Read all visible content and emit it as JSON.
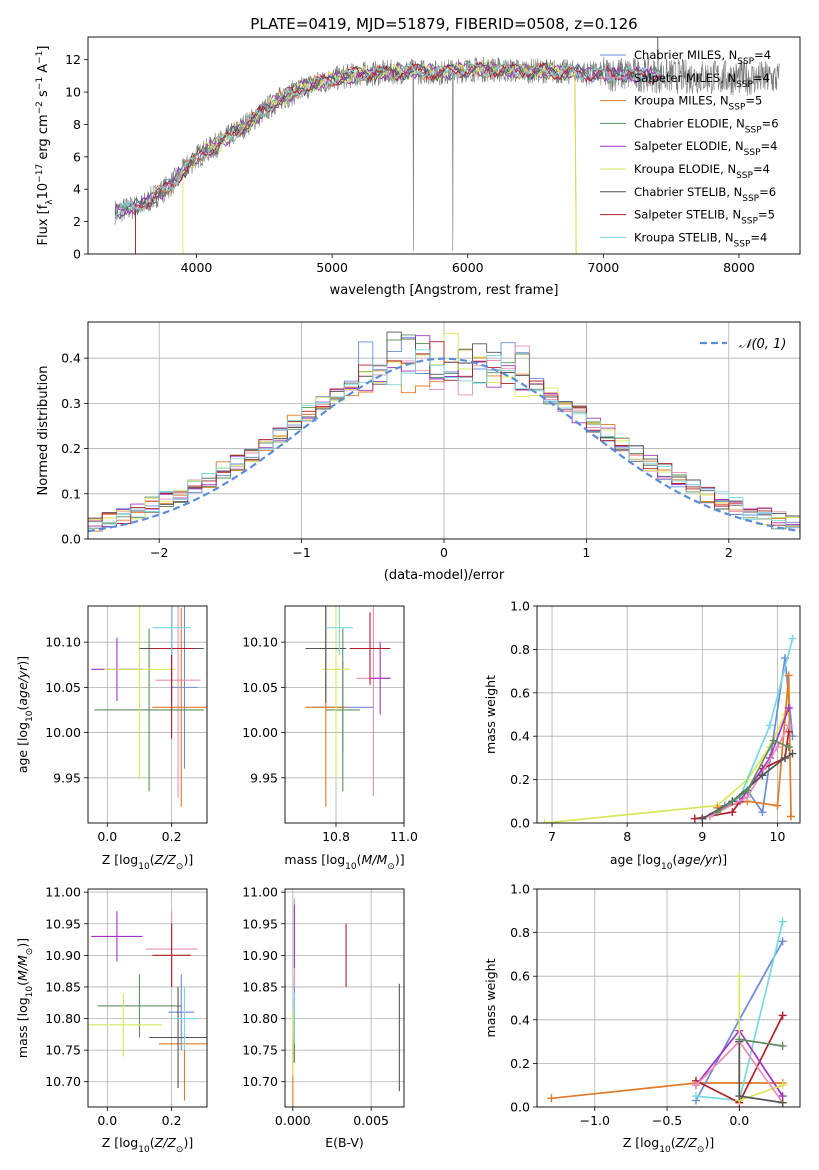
{
  "colors": {
    "chabrier_miles": "#6a8cd8",
    "salpeter_miles": "#e88fb8",
    "kroupa_miles": "#e07b2b",
    "chabrier_elodie": "#5f8f5f",
    "salpeter_elodie": "#a434c6",
    "kroupa_elodie": "#d8e85a",
    "chabrier_stelib": "#555555",
    "salpeter_stelib": "#b0202a",
    "kroupa_stelib": "#7ad8e0",
    "gaussian": "#5b8ed8"
  },
  "chart_data": [
    {
      "id": "spectrum",
      "type": "line",
      "title": "PLATE=0419, MJD=51879, FIBERID=0508, z=0.126",
      "xlabel": "wavelength [Angstrom, rest frame]",
      "ylabel": "Flux [f",
      "ylabel_sub": "λ",
      "ylabel_rest": "10",
      "ylabel_sup1": "−17",
      "ylabel_rest2": " erg cm",
      "ylabel_sup2": "−2",
      "ylabel_rest3": " s",
      "ylabel_sup3": "−1",
      "ylabel_rest4": " A",
      "ylabel_sup4": "−1",
      "ylabel_end": "]",
      "xlim": [
        3200,
        8450
      ],
      "ylim": [
        0,
        13.4
      ],
      "xticks": [
        4000,
        5000,
        6000,
        7000,
        8000
      ],
      "yticks": [
        0,
        2,
        4,
        6,
        8,
        10,
        12
      ],
      "grid": false,
      "legend": "right",
      "series": [
        {
          "name": "Chabrier MILES, N",
          "sub": "SSP",
          "eq": "=4",
          "color": "chabrier_miles"
        },
        {
          "name": "Salpeter MILES, N",
          "sub": "SSP",
          "eq": "=4",
          "color": "salpeter_miles"
        },
        {
          "name": "Kroupa MILES, N",
          "sub": "SSP",
          "eq": "=5",
          "color": "kroupa_miles"
        },
        {
          "name": "Chabrier ELODIE, N",
          "sub": "SSP",
          "eq": "=6",
          "color": "chabrier_elodie"
        },
        {
          "name": "Salpeter ELODIE, N",
          "sub": "SSP",
          "eq": "=4",
          "color": "salpeter_elodie"
        },
        {
          "name": "Kroupa ELODIE, N",
          "sub": "SSP",
          "eq": "=4",
          "color": "kroupa_elodie"
        },
        {
          "name": "Chabrier STELIB, N",
          "sub": "SSP",
          "eq": "=6",
          "color": "chabrier_stelib"
        },
        {
          "name": "Salpeter STELIB, N",
          "sub": "SSP",
          "eq": "=5",
          "color": "salpeter_stelib"
        },
        {
          "name": "Kroupa STELIB, N",
          "sub": "SSP",
          "eq": "=4",
          "color": "kroupa_stelib"
        }
      ],
      "continuum": {
        "x": [
          3400,
          3600,
          3800,
          4000,
          4200,
          4400,
          4600,
          4800,
          5000,
          5200,
          5400,
          5600,
          5800,
          6000,
          6200,
          6400,
          6600,
          6800,
          7000,
          7200,
          7400
        ],
        "y": [
          2.6,
          3.0,
          4.2,
          6.0,
          7.0,
          8.2,
          9.5,
          10.3,
          10.8,
          11.1,
          11.2,
          11.3,
          11.2,
          11.4,
          11.4,
          11.3,
          11.3,
          11.2,
          11.1,
          11.1,
          11.0
        ]
      },
      "data_x_range": [
        3400,
        8300
      ]
    },
    {
      "id": "residuals",
      "type": "line",
      "xlabel": "(data-model)/error",
      "ylabel": "Normed distribution",
      "xlim": [
        -2.5,
        2.5
      ],
      "ylim": [
        0,
        0.48
      ],
      "xticks": [
        -2,
        -1,
        0,
        1,
        2
      ],
      "yticks": [
        0.0,
        0.1,
        0.2,
        0.3,
        0.4
      ],
      "grid": true,
      "legend": "top-right",
      "legend_label": "𝒩(0, 1)",
      "bin_width": 0.1
    },
    {
      "id": "age_vs_Z",
      "type": "scatter",
      "xlabel": "Z [log",
      "xlabel_sub": "10",
      "xlabel_rest": "(Z/Z",
      "xlabel_sub2": "⊙",
      "xlabel_end": ")]",
      "ylabel": "age  [log",
      "ylabel_sub": "10",
      "ylabel_rest": "(age/yr)]",
      "xlim": [
        -0.06,
        0.31
      ],
      "ylim": [
        9.9,
        10.14
      ],
      "xticks": [
        0.0,
        0.2
      ],
      "yticks": [
        9.95,
        10.0,
        10.05,
        10.1
      ],
      "grid": true,
      "points": [
        {
          "x": 0.24,
          "y": 10.05,
          "xerr": 0.04,
          "yerr": 0.09,
          "color": "chabrier_miles"
        },
        {
          "x": 0.22,
          "y": 10.058,
          "xerr": 0.07,
          "yerr": 0.13,
          "color": "salpeter_miles"
        },
        {
          "x": 0.23,
          "y": 10.028,
          "xerr": 0.09,
          "yerr": 0.11,
          "color": "kroupa_miles"
        },
        {
          "x": 0.13,
          "y": 10.025,
          "xerr": 0.17,
          "yerr": 0.09,
          "color": "chabrier_elodie"
        },
        {
          "x": 0.03,
          "y": 10.07,
          "xerr": 0.08,
          "yerr": 0.035,
          "color": "salpeter_elodie"
        },
        {
          "x": 0.1,
          "y": 10.07,
          "xerr": 0.11,
          "yerr": 0.12,
          "color": "kroupa_elodie"
        },
        {
          "x": 0.2,
          "y": 10.093,
          "xerr": 0.1,
          "yerr": 0.06,
          "color": "chabrier_stelib"
        },
        {
          "x": 0.2,
          "y": 10.093,
          "xerr": 0.07,
          "yerr": 0.1,
          "color": "salpeter_stelib"
        },
        {
          "x": 0.2,
          "y": 10.116,
          "xerr": 0.06,
          "yerr": 0.03,
          "color": "kroupa_stelib"
        }
      ]
    },
    {
      "id": "age_vs_mass",
      "type": "scatter",
      "xlabel": "mass [log",
      "xlabel_sub": "10",
      "xlabel_rest": "(M/M",
      "xlabel_sub2": "⊙",
      "xlabel_end": ")]",
      "xlim": [
        10.65,
        11.0
      ],
      "ylim": [
        9.9,
        10.14
      ],
      "xticks": [
        10.8,
        11.0
      ],
      "yticks": [
        9.95,
        10.0,
        10.05,
        10.1
      ],
      "grid": true,
      "points": [
        {
          "x": 10.82,
          "y": 10.028,
          "xerr": 0.09,
          "yerr": 0.05,
          "color": "chabrier_miles"
        },
        {
          "x": 10.91,
          "y": 10.06,
          "xerr": 0.05,
          "yerr": 0.13,
          "color": "salpeter_miles"
        },
        {
          "x": 10.77,
          "y": 10.028,
          "xerr": 0.06,
          "yerr": 0.11,
          "color": "kroupa_miles"
        },
        {
          "x": 10.82,
          "y": 10.025,
          "xerr": 0.05,
          "yerr": 0.09,
          "color": "chabrier_elodie"
        },
        {
          "x": 10.93,
          "y": 10.06,
          "xerr": 0.03,
          "yerr": 0.04,
          "color": "salpeter_elodie"
        },
        {
          "x": 10.8,
          "y": 10.07,
          "xerr": 0.04,
          "yerr": 0.12,
          "color": "kroupa_elodie"
        },
        {
          "x": 10.77,
          "y": 10.093,
          "xerr": 0.06,
          "yerr": 0.06,
          "color": "chabrier_stelib"
        },
        {
          "x": 10.9,
          "y": 10.093,
          "xerr": 0.06,
          "yerr": 0.04,
          "color": "salpeter_stelib"
        },
        {
          "x": 10.81,
          "y": 10.116,
          "xerr": 0.04,
          "yerr": 0.03,
          "color": "kroupa_stelib"
        }
      ]
    },
    {
      "id": "weight_vs_age",
      "type": "line",
      "xlabel": "age  [log",
      "xlabel_sub": "10",
      "xlabel_rest": "(age/yr)]",
      "ylabel": "mass weight",
      "xlim": [
        6.8,
        10.3
      ],
      "ylim": [
        0,
        1.0
      ],
      "xticks": [
        7,
        8,
        9,
        10
      ],
      "yticks": [
        0.0,
        0.2,
        0.4,
        0.6,
        0.8,
        1.0
      ],
      "grid": true,
      "series": [
        {
          "color": "kroupa_elodie",
          "x": [
            6.9,
            9.2,
            9.6,
            9.9,
            10.1,
            10.15
          ],
          "y": [
            0.0,
            0.08,
            0.2,
            0.35,
            0.5,
            0.6
          ]
        },
        {
          "color": "chabrier_miles",
          "x": [
            9.0,
            9.3,
            9.6,
            9.8,
            10.1,
            10.2
          ],
          "y": [
            0.02,
            0.08,
            0.15,
            0.05,
            0.76,
            0.4
          ]
        },
        {
          "color": "kroupa_stelib",
          "x": [
            9.1,
            9.5,
            9.9,
            10.2
          ],
          "y": [
            0.03,
            0.12,
            0.45,
            0.85
          ]
        },
        {
          "color": "kroupa_miles",
          "x": [
            9.2,
            9.6,
            10.0,
            10.15,
            10.18
          ],
          "y": [
            0.07,
            0.1,
            0.08,
            0.68,
            0.03
          ]
        },
        {
          "color": "salpeter_stelib",
          "x": [
            8.9,
            9.4,
            9.8,
            10.1,
            10.15
          ],
          "y": [
            0.02,
            0.05,
            0.25,
            0.3,
            0.42
          ]
        },
        {
          "color": "salpeter_elodie",
          "x": [
            9.0,
            9.5,
            9.9,
            10.15
          ],
          "y": [
            0.02,
            0.1,
            0.3,
            0.53
          ]
        },
        {
          "color": "salpeter_miles",
          "x": [
            9.1,
            9.6,
            10.0,
            10.15
          ],
          "y": [
            0.03,
            0.12,
            0.35,
            0.45
          ]
        },
        {
          "color": "chabrier_stelib",
          "x": [
            9.0,
            9.4,
            9.8,
            10.1,
            10.2
          ],
          "y": [
            0.02,
            0.1,
            0.22,
            0.3,
            0.32
          ]
        },
        {
          "color": "chabrier_elodie",
          "x": [
            9.2,
            9.6,
            9.95,
            10.15
          ],
          "y": [
            0.05,
            0.15,
            0.38,
            0.35
          ]
        }
      ]
    },
    {
      "id": "mass_vs_Z",
      "type": "scatter",
      "xlabel": "Z [log",
      "xlabel_sub": "10",
      "xlabel_rest": "(Z/Z",
      "xlabel_sub2": "⊙",
      "xlabel_end": ")]",
      "ylabel": "mass [log",
      "ylabel_sub": "10",
      "ylabel_rest": "(M/M",
      "ylabel_sub2": "⊙",
      "ylabel_end": ")]",
      "xlim": [
        -0.06,
        0.31
      ],
      "ylim": [
        10.66,
        11.005
      ],
      "xticks": [
        0.0,
        0.2
      ],
      "yticks": [
        10.7,
        10.75,
        10.8,
        10.85,
        10.9,
        10.95,
        11.0
      ],
      "grid": true,
      "points": [
        {
          "x": 0.23,
          "y": 10.81,
          "xerr": 0.04,
          "yerr": 0.06,
          "color": "chabrier_miles"
        },
        {
          "x": 0.2,
          "y": 10.91,
          "xerr": 0.08,
          "yerr": 0.06,
          "color": "salpeter_miles"
        },
        {
          "x": 0.24,
          "y": 10.76,
          "xerr": 0.08,
          "yerr": 0.09,
          "color": "kroupa_miles"
        },
        {
          "x": 0.1,
          "y": 10.82,
          "xerr": 0.13,
          "yerr": 0.05,
          "color": "chabrier_elodie"
        },
        {
          "x": 0.03,
          "y": 10.93,
          "xerr": 0.08,
          "yerr": 0.04,
          "color": "salpeter_elodie"
        },
        {
          "x": 0.05,
          "y": 10.79,
          "xerr": 0.12,
          "yerr": 0.05,
          "color": "kroupa_elodie"
        },
        {
          "x": 0.22,
          "y": 10.77,
          "xerr": 0.09,
          "yerr": 0.08,
          "color": "chabrier_stelib"
        },
        {
          "x": 0.2,
          "y": 10.9,
          "xerr": 0.06,
          "yerr": 0.05,
          "color": "salpeter_stelib"
        },
        {
          "x": 0.24,
          "y": 10.8,
          "xerr": 0.04,
          "yerr": 0.05,
          "color": "kroupa_stelib"
        }
      ]
    },
    {
      "id": "mass_vs_ebv",
      "type": "scatter",
      "xlabel": "E(B-V)",
      "xlim": [
        -0.0005,
        0.0071
      ],
      "ylim": [
        10.66,
        11.005
      ],
      "xticks": [
        0.0,
        0.005
      ],
      "xticklabels": [
        "0.000",
        "0.005"
      ],
      "yticks": [
        10.7,
        10.75,
        10.8,
        10.85,
        10.9,
        10.95,
        11.0
      ],
      "grid": true,
      "points": [
        {
          "x": 0.0001,
          "y": 10.8,
          "xerr": 0.0,
          "yerr": 0.07,
          "color": "chabrier_miles"
        },
        {
          "x": 0.0001,
          "y": 10.92,
          "xerr": 0.0,
          "yerr": 0.07,
          "color": "salpeter_miles"
        },
        {
          "x": 0.0,
          "y": 10.72,
          "xerr": 0.0,
          "yerr": 0.06,
          "color": "kroupa_miles"
        },
        {
          "x": 0.0001,
          "y": 10.78,
          "xerr": 0.0,
          "yerr": 0.05,
          "color": "chabrier_elodie"
        },
        {
          "x": 0.0001,
          "y": 10.93,
          "xerr": 0.0,
          "yerr": 0.05,
          "color": "salpeter_elodie"
        },
        {
          "x": 0.0,
          "y": 10.76,
          "xerr": 0.0,
          "yerr": 0.05,
          "color": "kroupa_elodie"
        },
        {
          "x": 0.0068,
          "y": 10.77,
          "xerr": 0.0,
          "yerr": 0.085,
          "color": "chabrier_stelib"
        },
        {
          "x": 0.0034,
          "y": 10.9,
          "xerr": 0.0,
          "yerr": 0.05,
          "color": "salpeter_stelib"
        },
        {
          "x": 0.0001,
          "y": 10.8,
          "xerr": 0.0,
          "yerr": 0.04,
          "color": "kroupa_stelib"
        }
      ]
    },
    {
      "id": "weight_vs_Z",
      "type": "line",
      "xlabel": "Z [log",
      "xlabel_sub": "10",
      "xlabel_rest": "(Z/Z",
      "xlabel_sub2": "⊙",
      "xlabel_end": ")]",
      "ylabel": "mass weight",
      "xlim": [
        -1.4,
        0.42
      ],
      "ylim": [
        0,
        1.0
      ],
      "xticks": [
        -1.0,
        -0.5,
        0.0
      ],
      "xticklabels": [
        "−1.0",
        "−0.5",
        "0.0"
      ],
      "yticks": [
        0.0,
        0.2,
        0.4,
        0.6,
        0.8,
        1.0
      ],
      "grid": true,
      "series": [
        {
          "color": "kroupa_miles",
          "x": [
            -1.3,
            -0.3,
            0.0,
            0.3
          ],
          "y": [
            0.04,
            0.11,
            0.11,
            0.11
          ]
        },
        {
          "color": "chabrier_miles",
          "x": [
            -0.3,
            0.0,
            0.3
          ],
          "y": [
            0.03,
            0.4,
            0.76
          ]
        },
        {
          "color": "kroupa_stelib",
          "x": [
            -0.3,
            0.0,
            0.3
          ],
          "y": [
            0.05,
            0.03,
            0.85
          ]
        },
        {
          "color": "salpeter_stelib",
          "x": [
            -0.3,
            0.0,
            0.3
          ],
          "y": [
            0.12,
            0.02,
            0.42
          ]
        },
        {
          "color": "salpeter_elodie",
          "x": [
            -0.3,
            0.0,
            0.3
          ],
          "y": [
            0.1,
            0.35,
            0.05
          ]
        },
        {
          "color": "kroupa_elodie",
          "x": [
            0.0,
            0.0,
            0.3
          ],
          "y": [
            0.6,
            0.03,
            0.1
          ]
        },
        {
          "color": "salpeter_miles",
          "x": [
            -0.3,
            0.0,
            0.3
          ],
          "y": [
            0.1,
            0.3,
            0.02
          ]
        },
        {
          "color": "chabrier_stelib",
          "x": [
            0.0,
            0.0,
            0.3
          ],
          "y": [
            0.3,
            0.05,
            0.02
          ]
        },
        {
          "color": "chabrier_elodie",
          "x": [
            0.0,
            0.3
          ],
          "y": [
            0.31,
            0.28
          ]
        }
      ]
    }
  ]
}
